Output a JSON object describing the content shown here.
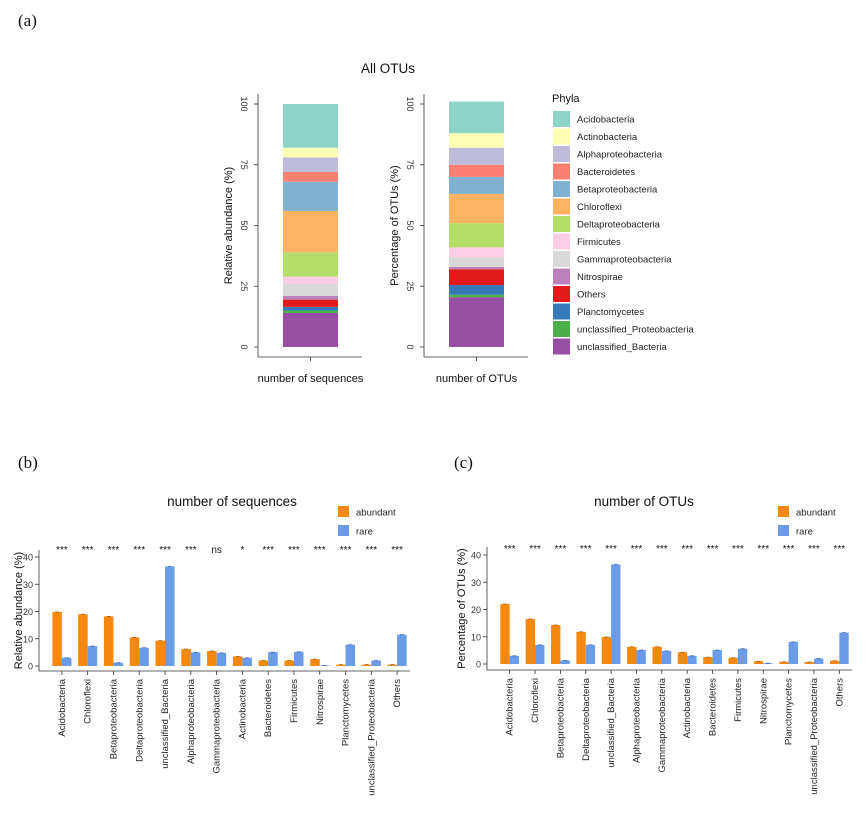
{
  "panels": {
    "a": "(a)",
    "b": "(b)",
    "c": "(c)"
  },
  "colors": {
    "Acidobacteria": "#8dd3c7",
    "Actinobacteria": "#ffffb3",
    "Alphaproteobacteria": "#bebada",
    "Bacteroidetes": "#fb8072",
    "Betaproteobacteria": "#80b1d3",
    "Chloroflexi": "#fdb462",
    "Deltaproteobacteria": "#b3de69",
    "Firmicutes": "#fccde5",
    "Gammaproteobacteria": "#d9d9d9",
    "Nitrospirae": "#bc80bd",
    "Others": "#e31a1c",
    "Planctomycetes": "#3579b8",
    "unclassified_Proteobacteria": "#4daf4a",
    "unclassified_Bacteria": "#984ea3",
    "abundant": "#f5890f",
    "rare": "#6a9be6"
  },
  "chart_data": [
    {
      "type": "bar",
      "stacked": true,
      "title": "All OTUs",
      "legend_title": "Phyla",
      "legend_position": "right",
      "phyla": [
        "Acidobacteria",
        "Actinobacteria",
        "Alphaproteobacteria",
        "Bacteroidetes",
        "Betaproteobacteria",
        "Chloroflexi",
        "Deltaproteobacteria",
        "Firmicutes",
        "Gammaproteobacteria",
        "Nitrospirae",
        "Others",
        "Planctomycetes",
        "unclassified_Proteobacteria",
        "unclassified_Bacteria"
      ],
      "yticks": [
        "0",
        "25",
        "50",
        "75",
        "100"
      ],
      "ylim": [
        0,
        100
      ],
      "bars": [
        {
          "xlabel": "number of sequences",
          "ylabel": "Relative abundance (%)",
          "values": {
            "unclassified_Bacteria": 14,
            "unclassified_Proteobacteria": 1,
            "Planctomycetes": 1.5,
            "Others": 3,
            "Nitrospirae": 1.5,
            "Gammaproteobacteria": 5,
            "Firmicutes": 3,
            "Deltaproteobacteria": 10,
            "Chloroflexi": 17,
            "Betaproteobacteria": 12,
            "Bacteroidetes": 4,
            "Alphaproteobacteria": 6,
            "Actinobacteria": 4,
            "Acidobacteria": 18
          }
        },
        {
          "xlabel": "number of OTUs",
          "ylabel": "Percentage of OTUs (%)",
          "values": {
            "unclassified_Bacteria": 20.5,
            "unclassified_Proteobacteria": 1,
            "Planctomycetes": 4,
            "Others": 6.5,
            "Nitrospirae": 1,
            "Gammaproteobacteria": 4,
            "Firmicutes": 4,
            "Deltaproteobacteria": 10,
            "Chloroflexi": 12,
            "Betaproteobacteria": 7,
            "Bacteroidetes": 5,
            "Alphaproteobacteria": 7,
            "Actinobacteria": 6,
            "Acidobacteria": 13
          }
        }
      ]
    },
    {
      "type": "bar",
      "title": "number of sequences",
      "ylabel": "Relative abundance (%)",
      "ylim": [
        0,
        42
      ],
      "yticks": [
        "0",
        "10",
        "20",
        "30",
        "40"
      ],
      "legend_position": "top-right",
      "categories": [
        "Acidobacteria",
        "Chloroflexi",
        "Betaproteobacteria",
        "Deltaproteobacteria",
        "unclassified_Bacteria",
        "Alphaproteobacteria",
        "Gammaproteobacteria",
        "Actinobacteria",
        "Bacteroidetes",
        "Firmicutes",
        "Nitrospirae",
        "Planctomycetes",
        "unclassified_Proteobacteria",
        "Others"
      ],
      "significance": [
        "***",
        "***",
        "***",
        "***",
        "***",
        "***",
        "ns",
        "*",
        "***",
        "***",
        "***",
        "***",
        "***",
        "***"
      ],
      "series": [
        {
          "name": "abundant",
          "values": [
            19.8,
            19,
            18.2,
            10.5,
            9.3,
            6.2,
            5.5,
            3.5,
            2,
            2,
            2.5,
            0.5,
            0.5,
            0.5
          ]
        },
        {
          "name": "rare",
          "values": [
            3,
            7.3,
            1.2,
            6.7,
            36.5,
            5,
            4.8,
            3,
            5.1,
            5.2,
            0.2,
            7.8,
            2,
            11.5
          ]
        }
      ]
    },
    {
      "type": "bar",
      "title": "number of OTUs",
      "ylabel": "Percentage of OTUs (%)",
      "ylim": [
        0,
        42
      ],
      "yticks": [
        "0",
        "10",
        "20",
        "30",
        "40"
      ],
      "legend_position": "top-right",
      "categories": [
        "Acidobacteria",
        "Chloroflexi",
        "Betaproteobacteria",
        "Deltaproteobacteria",
        "unclassified_Bacteria",
        "Alphaproteobacteria",
        "Gammaproteobacteria",
        "Actinobacteria",
        "Bacteroidetes",
        "Firmicutes",
        "Nitrospirae",
        "Planctomycetes",
        "unclassified_Proteobacteria",
        "Others"
      ],
      "significance": [
        "***",
        "***",
        "***",
        "***",
        "***",
        "***",
        "***",
        "***",
        "***",
        "***",
        "***",
        "***",
        "***",
        "***"
      ],
      "series": [
        {
          "name": "abundant",
          "values": [
            22,
            16.5,
            14.3,
            11.8,
            9.9,
            6.3,
            6.3,
            4.3,
            2.5,
            2.3,
            1,
            0.8,
            0.7,
            1.2
          ]
        },
        {
          "name": "rare",
          "values": [
            3,
            7,
            1.3,
            7,
            36.5,
            5.1,
            4.8,
            3,
            5.1,
            5.6,
            0.3,
            8.1,
            2,
            11.5
          ]
        }
      ]
    }
  ]
}
